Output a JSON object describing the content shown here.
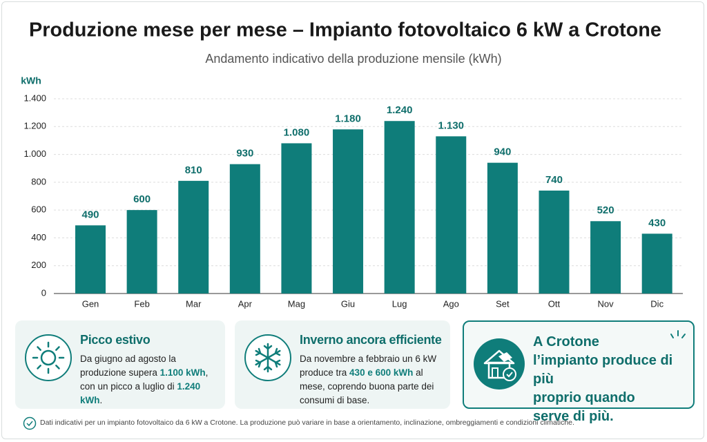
{
  "chart_data": {
    "type": "bar",
    "title": "Produzione mese per mese – Impianto fotovoltaico 6 kW a Crotone",
    "subtitle": "Andamento indicativo della produzione mensile (kWh)",
    "y_label": "kWh",
    "categories": [
      "Gen",
      "Feb",
      "Mar",
      "Apr",
      "Mag",
      "Giu",
      "Lug",
      "Ago",
      "Set",
      "Ott",
      "Nov",
      "Dic"
    ],
    "values": [
      490,
      600,
      810,
      930,
      1080,
      1180,
      1240,
      1130,
      940,
      740,
      520,
      430
    ],
    "value_labels": [
      "490",
      "600",
      "810",
      "930",
      "1.080",
      "1.180",
      "1.240",
      "1.130",
      "940",
      "740",
      "520",
      "430"
    ],
    "color": "#0f7d7a",
    "ylim": [
      0,
      1400
    ],
    "yticks": [
      0,
      200,
      400,
      600,
      800,
      {
        "value": 1000,
        "label": "1.000"
      },
      {
        "value": 1200,
        "label": "1.200"
      },
      {
        "value": 1400,
        "label": "1.400"
      }
    ],
    "grid": true
  },
  "cards": [
    {
      "title": "Picco estivo",
      "text": [
        {
          "t": "Da giugno ad agosto la produzione supera "
        },
        {
          "t": "1.100 kWh",
          "strong": true
        },
        {
          "t": ", con un picco a luglio di "
        },
        {
          "t": "1.240 kWh",
          "strong": true
        },
        {
          "t": "."
        }
      ]
    },
    {
      "title": "Inverno ancora efficiente",
      "text": [
        {
          "t": "Da novembre a febbraio un 6 kW produce tra "
        },
        {
          "t": "430 e 600 kWh",
          "strong": true
        },
        {
          "t": " al mese, coprendo buona parte dei consumi di base."
        }
      ]
    },
    {
      "lines": [
        "A Crotone",
        "l’impianto produce di più",
        "proprio quando",
        "serve di più."
      ]
    }
  ],
  "footnote": "Dati indicativi per un impianto fotovoltaico da 6 kW a Crotone. La produzione può variare in base a orientamento, inclinazione, ombreggiamenti e condizioni climatiche."
}
